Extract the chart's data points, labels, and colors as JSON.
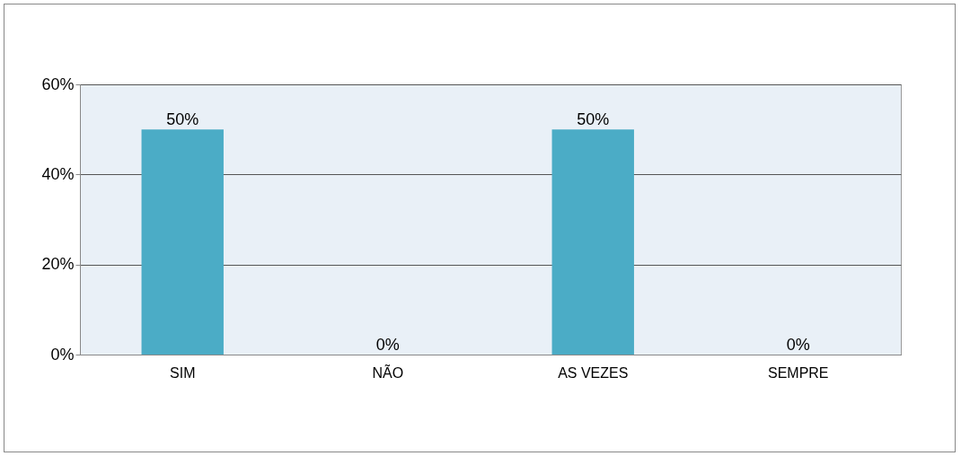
{
  "chart_data": {
    "type": "bar",
    "categories": [
      "SIM",
      "NÃO",
      "AS VEZES",
      "SEMPRE"
    ],
    "values": [
      50,
      0,
      50,
      0
    ],
    "value_labels": [
      "50%",
      "0%",
      "50%",
      "0%"
    ],
    "color": "#4bacc6",
    "ylim": [
      0,
      60
    ],
    "yticks": [
      {
        "value": 0,
        "label": "0%"
      },
      {
        "value": 20,
        "label": "20%"
      },
      {
        "value": 40,
        "label": "40%"
      },
      {
        "value": 60,
        "label": "60%"
      }
    ],
    "grid": "y"
  }
}
